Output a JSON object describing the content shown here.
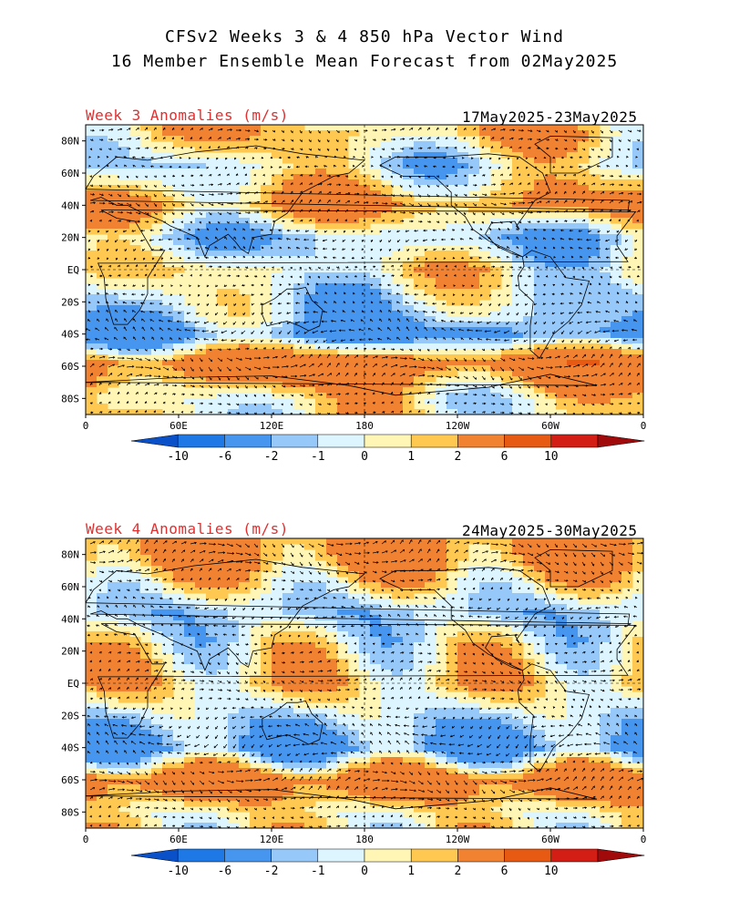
{
  "header": {
    "title_line1": "CFSv2 Weeks 3 & 4 850 hPa Vector Wind",
    "title_line2": "16 Member Ensemble Mean Forecast from 02May2025"
  },
  "panels": [
    {
      "id": "week3",
      "label": "Week 3 Anomalies (m/s)",
      "dates": "17May2025-23May2025"
    },
    {
      "id": "week4",
      "label": "Week 4 Anomalies (m/s)",
      "dates": "24May2025-30May2025"
    }
  ],
  "axes": {
    "lat_labels": [
      "80N",
      "60N",
      "40N",
      "20N",
      "EQ",
      "20S",
      "40S",
      "60S",
      "80S"
    ],
    "lon_labels": [
      "0",
      "60E",
      "120E",
      "180",
      "120W",
      "60W",
      "0"
    ]
  },
  "colorbar": {
    "labels": [
      "-10",
      "-6",
      "-2",
      "-1",
      "0",
      "1",
      "2",
      "6",
      "10"
    ],
    "colors": [
      "#0a50c8",
      "#1e78e6",
      "#4696f0",
      "#96c8fa",
      "#dcf5ff",
      "#fff5b4",
      "#ffc850",
      "#f08232",
      "#e65a14",
      "#d21e14",
      "#a00a0a"
    ]
  },
  "chart_data": {
    "type": "heatmap",
    "variable": "850 hPa vector wind anomaly",
    "units": "m/s",
    "color_levels": [
      -10,
      -6,
      -2,
      -1,
      0,
      1,
      2,
      6,
      10
    ],
    "fields": [
      {
        "panel": "week3",
        "bands": [
          {
            "lat": 85,
            "anom": 1.5
          },
          {
            "lat": 65,
            "anom": -0.5
          },
          {
            "lat": 40,
            "anom": 2.5
          },
          {
            "lat": 20,
            "anom": -1.5
          },
          {
            "lat": 0,
            "anom": 0.5
          },
          {
            "lat": -30,
            "anom": -1.5
          },
          {
            "lat": -40,
            "anom": -3
          },
          {
            "lat": -58,
            "anom": 4
          },
          {
            "lat": -80,
            "anom": 0.5
          }
        ]
      },
      {
        "panel": "week4",
        "bands": [
          {
            "lat": 78,
            "anom": 3
          },
          {
            "lat": 45,
            "anom": -1.5
          },
          {
            "lat": 20,
            "anom": 0.5
          },
          {
            "lat": 0,
            "anom": 1.5
          },
          {
            "lat": -25,
            "anom": -1.5
          },
          {
            "lat": -40,
            "anom": -3
          },
          {
            "lat": -60,
            "anom": 4
          },
          {
            "lat": -80,
            "anom": 0.5
          }
        ]
      }
    ]
  }
}
